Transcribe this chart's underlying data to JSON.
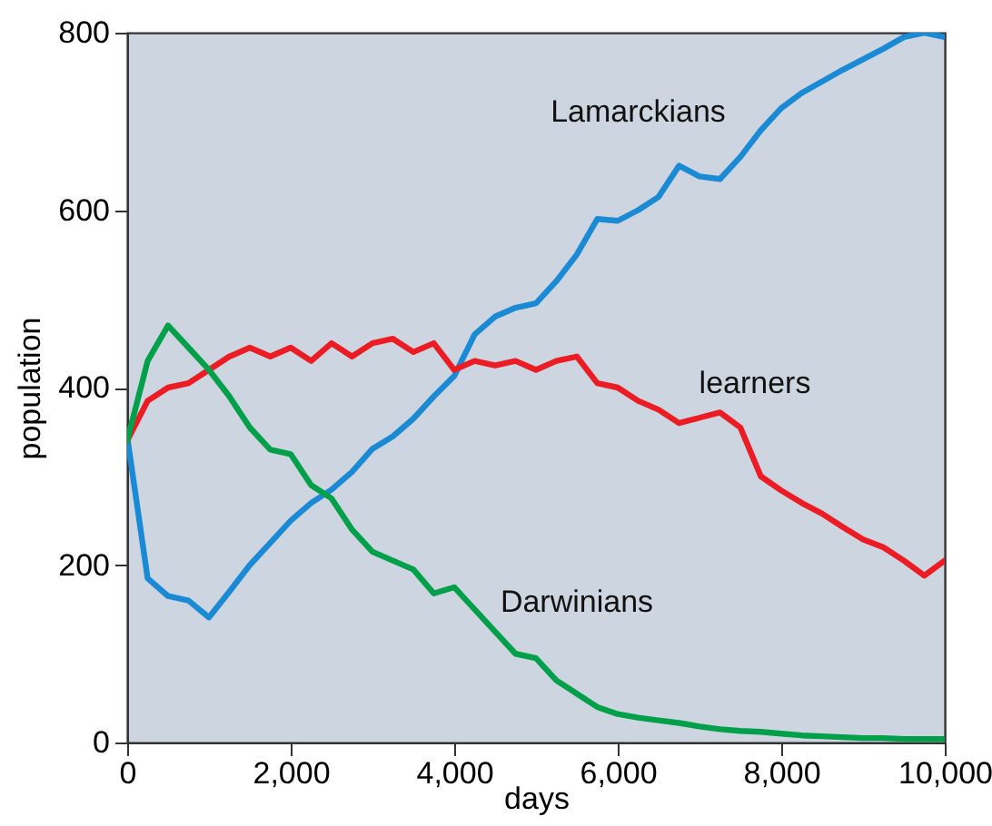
{
  "chart_data": {
    "type": "line",
    "xlabel": "days",
    "ylabel": "population",
    "x": [
      0,
      250,
      500,
      750,
      1000,
      1250,
      1500,
      1750,
      2000,
      2250,
      2500,
      2750,
      3000,
      3250,
      3500,
      3750,
      4000,
      4250,
      4500,
      4750,
      5000,
      5250,
      5500,
      5750,
      6000,
      6250,
      6500,
      6750,
      7000,
      7250,
      7500,
      7750,
      8000,
      8250,
      8500,
      8750,
      9000,
      9250,
      9500,
      9750,
      10000
    ],
    "xlim": [
      0,
      10000
    ],
    "xticks": [
      {
        "value": 0,
        "label": "0"
      },
      {
        "value": 2000,
        "label": "2,000"
      },
      {
        "value": 4000,
        "label": "4,000"
      },
      {
        "value": 6000,
        "label": "6,000"
      },
      {
        "value": 8000,
        "label": "8,000"
      },
      {
        "value": 10000,
        "label": "10,000"
      }
    ],
    "ylim": [
      0,
      800
    ],
    "yticks": [
      0,
      200,
      400,
      600,
      800
    ],
    "grid": false,
    "legend": false,
    "line_style": "solid",
    "marker": "none",
    "series": [
      {
        "name": "Lamarckians",
        "color": "#1a8ad4",
        "values": [
          345,
          185,
          165,
          160,
          141,
          170,
          200,
          225,
          250,
          270,
          285,
          305,
          331,
          345,
          365,
          390,
          413,
          460,
          480,
          490,
          495,
          520,
          550,
          590,
          588,
          600,
          615,
          650,
          638,
          635,
          660,
          690,
          715,
          732,
          745,
          758,
          770,
          782,
          795,
          800,
          795
        ]
      },
      {
        "name": "learners",
        "color": "#ec1c24",
        "values": [
          340,
          385,
          400,
          405,
          420,
          435,
          445,
          435,
          445,
          430,
          450,
          435,
          450,
          455,
          440,
          450,
          420,
          430,
          425,
          430,
          420,
          430,
          435,
          405,
          400,
          385,
          375,
          360,
          366,
          372,
          355,
          300,
          284,
          270,
          258,
          243,
          229,
          220,
          205,
          188,
          205
        ]
      },
      {
        "name": "Darwinians",
        "color": "#00a04b",
        "values": [
          340,
          430,
          470,
          445,
          420,
          390,
          355,
          330,
          325,
          290,
          275,
          240,
          215,
          205,
          195,
          168,
          175,
          150,
          125,
          100,
          95,
          70,
          55,
          40,
          32,
          28,
          25,
          22,
          18,
          15,
          13,
          12,
          10,
          8,
          7,
          6,
          5,
          5,
          4,
          4,
          4
        ]
      }
    ]
  }
}
